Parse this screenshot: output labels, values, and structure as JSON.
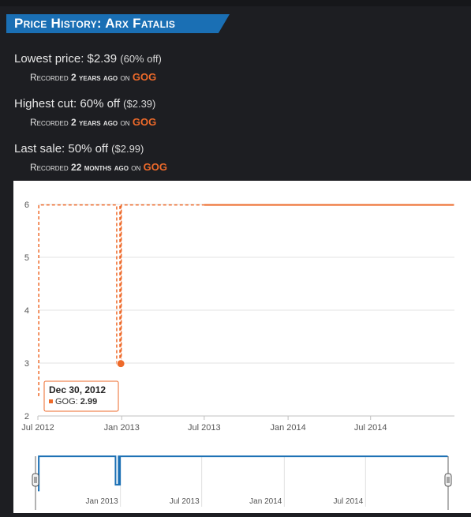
{
  "header": {
    "title": "Price History: Arx Fatalis"
  },
  "stats": {
    "lowest": {
      "label": "Lowest price:",
      "value": "$2.39",
      "detail": "(60% off)",
      "rec_prefix": "Recorded",
      "rec_time": "2 years ago",
      "rec_on": "on",
      "store": "GOG"
    },
    "highest": {
      "label": "Highest cut:",
      "value": "60% off",
      "detail": "($2.39)",
      "rec_prefix": "Recorded",
      "rec_time": "2 years ago",
      "rec_on": "on",
      "store": "GOG"
    },
    "last": {
      "label": "Last sale:",
      "value": "50% off",
      "detail": "($2.99)",
      "rec_prefix": "Recorded",
      "rec_time": "22 months ago",
      "rec_on": "on",
      "store": "GOG"
    }
  },
  "colors": {
    "banner": "#1a6fb4",
    "series": "#ee6a2a",
    "navigator": "#1a6fb4",
    "background": "#1d1e22"
  },
  "chart_data": {
    "type": "line",
    "ylim": [
      2,
      6
    ],
    "yticks": [
      2,
      3,
      4,
      5,
      6
    ],
    "xrange": [
      "2012-07-01",
      "2015-01-01"
    ],
    "xticks": [
      {
        "date": "2012-07-01",
        "label": "Jul 2012"
      },
      {
        "date": "2013-01-01",
        "label": "Jan 2013"
      },
      {
        "date": "2013-07-01",
        "label": "Jul 2013"
      },
      {
        "date": "2014-01-01",
        "label": "Jan 2014"
      },
      {
        "date": "2014-07-01",
        "label": "Jul 2014"
      }
    ],
    "grid": true,
    "series": [
      {
        "name": "GOG",
        "points": [
          {
            "x": "2012-07-01",
            "y": 2.39
          },
          {
            "x": "2012-07-03",
            "y": 5.99
          },
          {
            "x": "2012-12-20",
            "y": 5.99
          },
          {
            "x": "2012-12-21",
            "y": 2.99
          },
          {
            "x": "2012-12-27",
            "y": 2.99
          },
          {
            "x": "2012-12-28",
            "y": 5.99
          },
          {
            "x": "2012-12-29",
            "y": 5.99
          },
          {
            "x": "2012-12-30",
            "y": 2.99
          },
          {
            "x": "2012-12-31",
            "y": 5.99
          },
          {
            "x": "2014-12-31",
            "y": 5.99
          }
        ]
      }
    ],
    "tooltip": {
      "date": "Dec 30, 2012",
      "series": "GOG",
      "value": "2.99"
    },
    "highlight": {
      "x": "2012-12-30",
      "y": 2.99
    },
    "navigator": {
      "xticks": [
        {
          "date": "2013-01-01",
          "label": "Jan 2013"
        },
        {
          "date": "2013-07-01",
          "label": "Jul 2013"
        },
        {
          "date": "2014-01-01",
          "label": "Jan 2014"
        },
        {
          "date": "2014-07-01",
          "label": "Jul 2014"
        }
      ]
    }
  }
}
